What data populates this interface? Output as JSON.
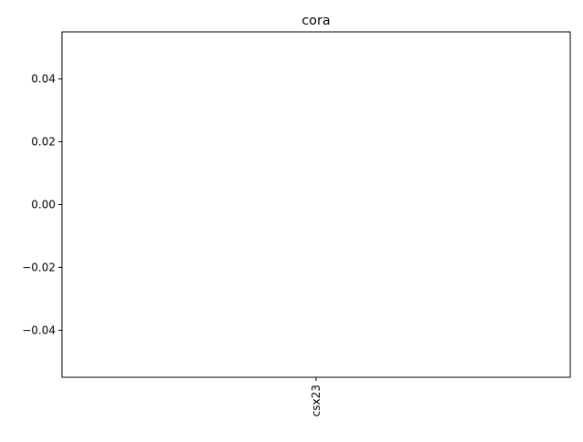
{
  "chart_data": {
    "type": "bar",
    "title": "cora",
    "xlabel": "",
    "ylabel": "",
    "categories": [
      "csx23"
    ],
    "values": [
      0
    ],
    "ylim": [
      -0.055,
      0.055
    ],
    "yticks": [
      -0.04,
      -0.02,
      0.0,
      0.02,
      0.04
    ],
    "ytick_labels": [
      "−0.04",
      "−0.02",
      "0.00",
      "0.02",
      "0.04"
    ],
    "grid": false,
    "legend": "none"
  }
}
